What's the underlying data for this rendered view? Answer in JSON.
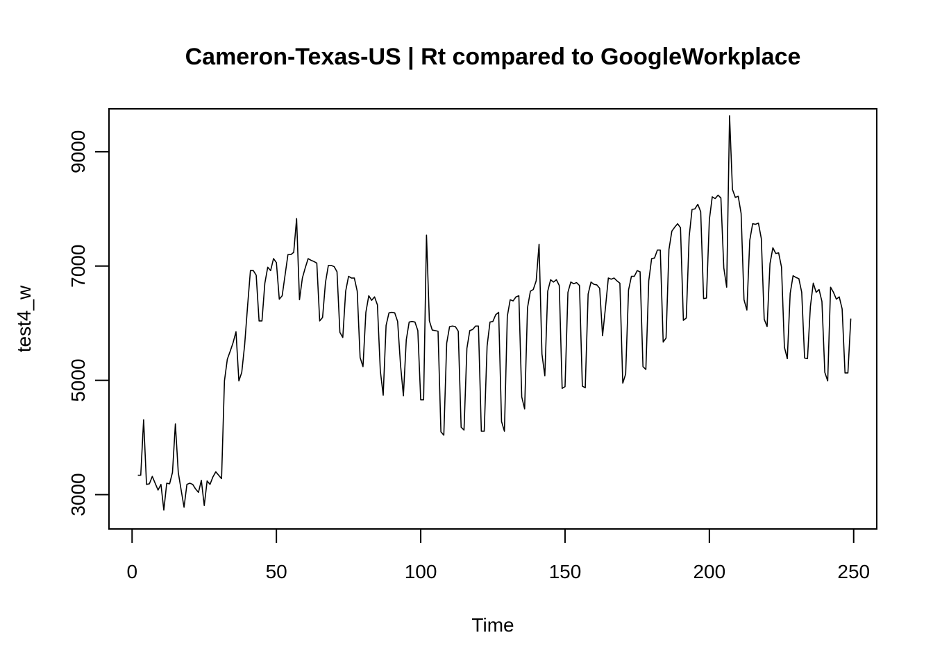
{
  "chart_data": {
    "type": "line",
    "title": "Cameron-Texas-US | Rt compared to GoogleWorkplace",
    "xlabel": "Time",
    "ylabel": "test4_w",
    "xlim": [
      -8,
      258
    ],
    "ylim": [
      2400,
      9750
    ],
    "x_ticks": [
      0,
      50,
      100,
      150,
      200,
      250
    ],
    "x_tick_labels": [
      "0",
      "50",
      "100",
      "150",
      "200",
      "250"
    ],
    "y_ticks": [
      3000,
      5000,
      7000,
      9000
    ],
    "y_tick_labels": [
      "3000",
      "5000",
      "7000",
      "9000"
    ],
    "grid": false,
    "legend": "none",
    "line_color": "#000000",
    "series": [
      {
        "x_start": 2,
        "values": [
          3340,
          3340,
          4310,
          3180,
          3190,
          3320,
          3200,
          3080,
          3180,
          2730,
          3200,
          3190,
          3390,
          4240,
          3390,
          3080,
          2780,
          3180,
          3200,
          3180,
          3100,
          3040,
          3250,
          2810,
          3240,
          3180,
          3310,
          3400,
          3340,
          3280,
          4990,
          5370,
          5510,
          5660,
          5850,
          4990,
          5140,
          5620,
          6290,
          6920,
          6920,
          6840,
          6040,
          6040,
          6700,
          6980,
          6920,
          7130,
          7060,
          6420,
          6480,
          6840,
          7200,
          7200,
          7240,
          7830,
          6410,
          6790,
          6970,
          7130,
          7100,
          7080,
          7050,
          6040,
          6100,
          6710,
          7010,
          7010,
          6990,
          6900,
          5840,
          5750,
          6560,
          6820,
          6790,
          6790,
          6560,
          5400,
          5240,
          6190,
          6480,
          6400,
          6460,
          6320,
          5170,
          4740,
          5960,
          6180,
          6190,
          6180,
          6030,
          5270,
          4730,
          5710,
          6020,
          6030,
          6020,
          5870,
          4660,
          4660,
          7540,
          6040,
          5880,
          5870,
          5860,
          4100,
          4040,
          5650,
          5940,
          5950,
          5940,
          5860,
          4180,
          4130,
          5560,
          5870,
          5890,
          5950,
          5950,
          4110,
          4110,
          5600,
          6020,
          6030,
          6150,
          6190,
          4280,
          4110,
          6120,
          6410,
          6390,
          6460,
          6480,
          4710,
          4500,
          6270,
          6560,
          6590,
          6740,
          7380,
          5460,
          5080,
          6560,
          6760,
          6720,
          6760,
          6660,
          4860,
          4890,
          6540,
          6720,
          6690,
          6710,
          6660,
          4900,
          4870,
          6510,
          6720,
          6680,
          6670,
          6610,
          5780,
          6270,
          6790,
          6770,
          6790,
          6740,
          6700,
          4950,
          5110,
          6580,
          6820,
          6820,
          6920,
          6900,
          5240,
          5190,
          6740,
          7130,
          7140,
          7280,
          7280,
          5670,
          5740,
          7290,
          7610,
          7680,
          7740,
          7670,
          6050,
          6090,
          7510,
          7990,
          8000,
          8080,
          7950,
          6430,
          6440,
          7810,
          8210,
          8180,
          8240,
          8190,
          6970,
          6630,
          9630,
          8340,
          8200,
          8220,
          7920,
          6410,
          6230,
          7450,
          7740,
          7730,
          7750,
          7480,
          6070,
          5940,
          7040,
          7320,
          7220,
          7230,
          6980,
          5580,
          5380,
          6520,
          6830,
          6800,
          6780,
          6540,
          5390,
          5380,
          6290,
          6700,
          6540,
          6590,
          6380,
          5140,
          4990,
          6630,
          6540,
          6420,
          6460,
          6250,
          5130,
          5130,
          6080
        ]
      }
    ]
  }
}
